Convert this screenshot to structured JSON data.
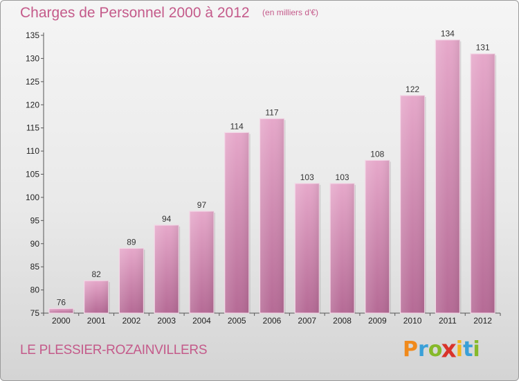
{
  "header": {
    "title": "Charges de Personnel 2000 à 2012",
    "subtitle": "(en milliers d'€)"
  },
  "footer": {
    "commune": "LE PLESSIER-ROZAINVILLERS",
    "logo": {
      "letters": [
        "P",
        "r",
        "o",
        "x",
        "i",
        "t",
        "i"
      ],
      "colors": [
        "#f08a1c",
        "#3aa0d8",
        "#86b92a",
        "#d9332a",
        "#f0b71c",
        "#3aa0d8",
        "#86b92a"
      ]
    }
  },
  "chart_data": {
    "type": "bar",
    "title": "Charges de Personnel 2000 à 2012",
    "subtitle": "(en milliers d'€)",
    "categories": [
      "2000",
      "2001",
      "2002",
      "2003",
      "2004",
      "2005",
      "2006",
      "2007",
      "2008",
      "2009",
      "2010",
      "2011",
      "2012"
    ],
    "values": [
      76,
      82,
      89,
      94,
      97,
      114,
      117,
      103,
      103,
      108,
      122,
      134,
      131
    ],
    "ylim": [
      75,
      135
    ],
    "yticks": [
      75,
      80,
      85,
      90,
      95,
      100,
      105,
      110,
      115,
      120,
      125,
      130,
      135
    ],
    "grid": false,
    "bar_color": "#d98ab5"
  }
}
